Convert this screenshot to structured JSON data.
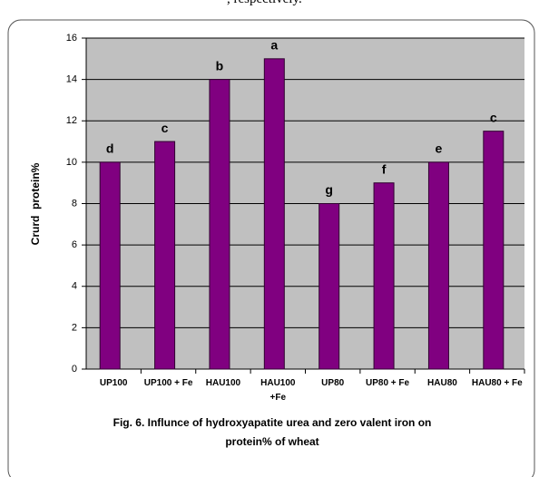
{
  "top_text": ", respectively.",
  "chart_data": {
    "type": "bar",
    "ylabel": "Crurd  protein%",
    "categories": [
      "UP100",
      "UP100 + Fe",
      "HAU100",
      "HAU100 +Fe",
      "UP80",
      "UP80 + Fe",
      "HAU80",
      "HAU80 + Fe"
    ],
    "values": [
      10,
      11,
      14,
      15,
      8,
      9,
      10,
      11.5
    ],
    "annotations": [
      "d",
      "c",
      "b",
      "a",
      "g",
      "f",
      "e",
      "c"
    ],
    "color": "#800080",
    "ylim": [
      0,
      16
    ],
    "yticks": [
      0,
      2,
      4,
      6,
      8,
      10,
      12,
      14,
      16
    ],
    "grid": true,
    "caption": "Fig. 6. Influnce of hydroxyapatite urea and zero valent iron on protein% of wheat"
  }
}
